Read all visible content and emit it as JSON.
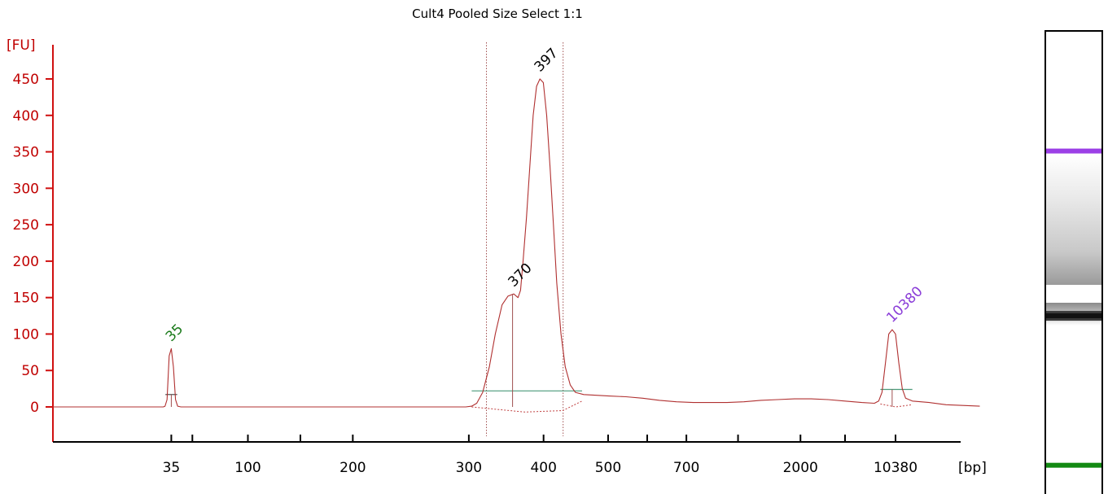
{
  "chart_data": {
    "type": "line",
    "title": "Cult4 Pooled Size Select 1:1",
    "ylabel": "[FU]",
    "xlabel": "[bp]",
    "ylim": [
      -45,
      485
    ],
    "y_ticks": [
      0,
      50,
      100,
      150,
      200,
      250,
      300,
      350,
      400,
      450
    ],
    "x_ticks": [
      "35",
      "100",
      "200",
      "300",
      "400",
      "500",
      "700",
      "2000",
      "10380"
    ],
    "x_tick_sizes": [
      35,
      100,
      200,
      300,
      400,
      500,
      700,
      2000,
      10380
    ],
    "x_tick_relative": [
      0.1405,
      0.2314,
      0.3559,
      0.4936,
      0.5823,
      0.6589,
      0.7518,
      0.8872,
      1.0
    ],
    "grid": false,
    "series": [
      {
        "color": "#b03030",
        "points": [
          [
            0.0,
            0
          ],
          [
            0.131,
            0
          ],
          [
            0.133,
            1
          ],
          [
            0.1355,
            10
          ],
          [
            0.138,
            70
          ],
          [
            0.1405,
            80
          ],
          [
            0.143,
            55
          ],
          [
            0.1455,
            10
          ],
          [
            0.148,
            1
          ],
          [
            0.152,
            0
          ],
          [
            0.3,
            0
          ],
          [
            0.49,
            0
          ],
          [
            0.497,
            1
          ],
          [
            0.503,
            5
          ],
          [
            0.51,
            20
          ],
          [
            0.518,
            55
          ],
          [
            0.525,
            100
          ],
          [
            0.533,
            140
          ],
          [
            0.54,
            152
          ],
          [
            0.547,
            155
          ],
          [
            0.552,
            150
          ],
          [
            0.555,
            160
          ],
          [
            0.558,
            200
          ],
          [
            0.562,
            260
          ],
          [
            0.566,
            330
          ],
          [
            0.57,
            400
          ],
          [
            0.574,
            440
          ],
          [
            0.578,
            450
          ],
          [
            0.582,
            445
          ],
          [
            0.586,
            400
          ],
          [
            0.59,
            330
          ],
          [
            0.594,
            250
          ],
          [
            0.598,
            170
          ],
          [
            0.603,
            100
          ],
          [
            0.608,
            55
          ],
          [
            0.614,
            30
          ],
          [
            0.62,
            20
          ],
          [
            0.63,
            17
          ],
          [
            0.645,
            16
          ],
          [
            0.66,
            15
          ],
          [
            0.68,
            14
          ],
          [
            0.7,
            12
          ],
          [
            0.72,
            9
          ],
          [
            0.74,
            7
          ],
          [
            0.76,
            6
          ],
          [
            0.78,
            6
          ],
          [
            0.8,
            6
          ],
          [
            0.82,
            7
          ],
          [
            0.84,
            9
          ],
          [
            0.86,
            10
          ],
          [
            0.88,
            11
          ],
          [
            0.9,
            11
          ],
          [
            0.92,
            10
          ],
          [
            0.94,
            8
          ],
          [
            0.96,
            6
          ],
          [
            0.975,
            5
          ],
          [
            0.98,
            8
          ],
          [
            0.984,
            20
          ],
          [
            0.988,
            60
          ],
          [
            0.992,
            100
          ],
          [
            0.996,
            106
          ],
          [
            1.0,
            100
          ],
          [
            1.004,
            60
          ],
          [
            1.008,
            25
          ],
          [
            1.012,
            12
          ],
          [
            1.02,
            8
          ],
          [
            1.04,
            6
          ],
          [
            1.06,
            3
          ],
          [
            1.08,
            2
          ],
          [
            1.1,
            1
          ]
        ]
      }
    ],
    "peaks": [
      {
        "label": "35",
        "x": 0.1405,
        "y": 80,
        "color": "#1a7a1a"
      },
      {
        "label": "370",
        "x": 0.547,
        "y": 155,
        "color": "#000000"
      },
      {
        "label": "397",
        "x": 0.578,
        "y": 450,
        "color": "#000000"
      },
      {
        "label": "10380",
        "x": 0.996,
        "y": 106,
        "color": "#8a3cd8"
      }
    ],
    "region_markers": [
      0.5145,
      0.6055
    ],
    "baselines": [
      {
        "x1": 0.497,
        "x2": 0.628,
        "y": 22,
        "color": "#4a9a7a"
      },
      {
        "x1": 0.1335,
        "x2": 0.1475,
        "y": 17,
        "color": "#4a4a4a"
      },
      {
        "x1": 0.982,
        "x2": 1.02,
        "y": 24,
        "color": "#4a9a7a"
      }
    ],
    "gel_bands": [
      {
        "pos": 0.258,
        "color": "#9b3fe6",
        "kind": "marker"
      },
      {
        "pos": 0.612,
        "color": "#111111",
        "kind": "sample"
      },
      {
        "pos": 0.933,
        "color": "#138a13",
        "kind": "marker"
      }
    ]
  }
}
